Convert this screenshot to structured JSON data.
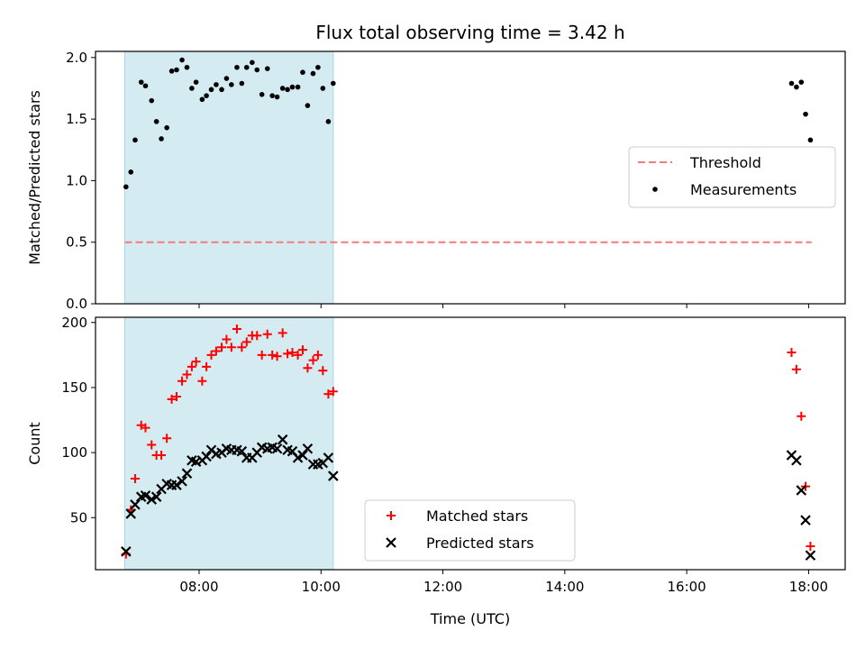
{
  "chart_data": {
    "title": "Flux total observing time = 3.42 h",
    "xlabel": "Time (UTC)",
    "x_unit": "hours (UTC)",
    "xlim": [
      6.3,
      18.6
    ],
    "x_ticks": [
      {
        "value": 8,
        "label": "08:00"
      },
      {
        "value": 10,
        "label": "10:00"
      },
      {
        "value": 12,
        "label": "12:00"
      },
      {
        "value": 14,
        "label": "14:00"
      },
      {
        "value": 16,
        "label": "16:00"
      },
      {
        "value": 18,
        "label": "18:00"
      }
    ],
    "shaded_interval": {
      "x": [
        6.78,
        10.2
      ],
      "color": "#d3ebf1"
    },
    "panels": [
      {
        "type": "scatter",
        "ylabel": "Matched/Predicted stars",
        "ylim": [
          0,
          2.05
        ],
        "y_ticks": [
          {
            "value": 0.0,
            "label": "0.0"
          },
          {
            "value": 0.5,
            "label": "0.5"
          },
          {
            "value": 1.0,
            "label": "1.0"
          },
          {
            "value": 1.5,
            "label": "1.5"
          },
          {
            "value": 2.0,
            "label": "2.0"
          }
        ],
        "legend_position": "center-right",
        "threshold": {
          "name": "Threshold",
          "y": 0.5,
          "x": [
            6.78,
            18.05
          ],
          "color": "#f07c7c"
        },
        "series": [
          {
            "name": "Measurements",
            "marker": "dot",
            "color": "#000000",
            "points": [
              [
                6.8,
                0.95
              ],
              [
                6.88,
                1.07
              ],
              [
                6.95,
                1.33
              ],
              [
                7.05,
                1.8
              ],
              [
                7.12,
                1.77
              ],
              [
                7.22,
                1.65
              ],
              [
                7.3,
                1.48
              ],
              [
                7.38,
                1.34
              ],
              [
                7.47,
                1.43
              ],
              [
                7.55,
                1.89
              ],
              [
                7.63,
                1.9
              ],
              [
                7.72,
                1.98
              ],
              [
                7.8,
                1.92
              ],
              [
                7.88,
                1.75
              ],
              [
                7.95,
                1.8
              ],
              [
                8.05,
                1.66
              ],
              [
                8.12,
                1.69
              ],
              [
                8.2,
                1.74
              ],
              [
                8.28,
                1.78
              ],
              [
                8.37,
                1.74
              ],
              [
                8.45,
                1.83
              ],
              [
                8.53,
                1.78
              ],
              [
                8.62,
                1.92
              ],
              [
                8.7,
                1.79
              ],
              [
                8.78,
                1.92
              ],
              [
                8.87,
                1.96
              ],
              [
                8.95,
                1.9
              ],
              [
                9.03,
                1.7
              ],
              [
                9.12,
                1.91
              ],
              [
                9.2,
                1.69
              ],
              [
                9.28,
                1.68
              ],
              [
                9.37,
                1.75
              ],
              [
                9.45,
                1.74
              ],
              [
                9.53,
                1.76
              ],
              [
                9.62,
                1.76
              ],
              [
                9.7,
                1.88
              ],
              [
                9.78,
                1.61
              ],
              [
                9.87,
                1.87
              ],
              [
                9.95,
                1.92
              ],
              [
                10.03,
                1.75
              ],
              [
                10.12,
                1.48
              ],
              [
                10.2,
                1.79
              ],
              [
                17.72,
                1.79
              ],
              [
                17.8,
                1.76
              ],
              [
                17.88,
                1.8
              ],
              [
                17.95,
                1.54
              ],
              [
                18.03,
                1.33
              ]
            ]
          }
        ]
      },
      {
        "type": "scatter",
        "ylabel": "Count",
        "ylim": [
          10,
          204
        ],
        "y_ticks": [
          {
            "value": 50,
            "label": "50"
          },
          {
            "value": 100,
            "label": "100"
          },
          {
            "value": 150,
            "label": "150"
          },
          {
            "value": 200,
            "label": "200"
          }
        ],
        "legend_position": "lower-center",
        "series": [
          {
            "name": "Matched stars",
            "marker": "plus",
            "color": "#ff0000",
            "points": [
              [
                6.8,
                22
              ],
              [
                6.88,
                56
              ],
              [
                6.95,
                80
              ],
              [
                7.05,
                121
              ],
              [
                7.12,
                119
              ],
              [
                7.22,
                106
              ],
              [
                7.3,
                98
              ],
              [
                7.38,
                98
              ],
              [
                7.47,
                111
              ],
              [
                7.55,
                141
              ],
              [
                7.63,
                143
              ],
              [
                7.72,
                155
              ],
              [
                7.8,
                160
              ],
              [
                7.88,
                166
              ],
              [
                7.95,
                170
              ],
              [
                8.05,
                155
              ],
              [
                8.12,
                166
              ],
              [
                8.2,
                175
              ],
              [
                8.28,
                178
              ],
              [
                8.37,
                181
              ],
              [
                8.45,
                187
              ],
              [
                8.53,
                181
              ],
              [
                8.62,
                195
              ],
              [
                8.7,
                181
              ],
              [
                8.78,
                185
              ],
              [
                8.87,
                190
              ],
              [
                8.95,
                190
              ],
              [
                9.03,
                175
              ],
              [
                9.12,
                191
              ],
              [
                9.2,
                175
              ],
              [
                9.28,
                174
              ],
              [
                9.37,
                192
              ],
              [
                9.45,
                176
              ],
              [
                9.53,
                177
              ],
              [
                9.62,
                175
              ],
              [
                9.7,
                179
              ],
              [
                9.78,
                165
              ],
              [
                9.87,
                171
              ],
              [
                9.95,
                175
              ],
              [
                10.03,
                163
              ],
              [
                10.12,
                145
              ],
              [
                10.2,
                147
              ],
              [
                17.72,
                177
              ],
              [
                17.8,
                164
              ],
              [
                17.88,
                128
              ],
              [
                17.95,
                74
              ],
              [
                18.03,
                28
              ]
            ]
          },
          {
            "name": "Predicted stars",
            "marker": "cross",
            "color": "#000000",
            "points": [
              [
                6.8,
                24
              ],
              [
                6.88,
                53
              ],
              [
                6.95,
                60
              ],
              [
                7.05,
                66
              ],
              [
                7.12,
                67
              ],
              [
                7.22,
                64
              ],
              [
                7.3,
                66
              ],
              [
                7.38,
                72
              ],
              [
                7.47,
                76
              ],
              [
                7.55,
                75
              ],
              [
                7.63,
                75
              ],
              [
                7.72,
                78
              ],
              [
                7.8,
                84
              ],
              [
                7.88,
                94
              ],
              [
                7.95,
                93
              ],
              [
                8.05,
                94
              ],
              [
                8.12,
                97
              ],
              [
                8.2,
                102
              ],
              [
                8.28,
                99
              ],
              [
                8.37,
                100
              ],
              [
                8.45,
                103
              ],
              [
                8.53,
                102
              ],
              [
                8.62,
                102
              ],
              [
                8.7,
                101
              ],
              [
                8.78,
                96
              ],
              [
                8.87,
                96
              ],
              [
                8.95,
                100
              ],
              [
                9.03,
                104
              ],
              [
                9.12,
                103
              ],
              [
                9.2,
                104
              ],
              [
                9.28,
                103
              ],
              [
                9.37,
                110
              ],
              [
                9.45,
                102
              ],
              [
                9.53,
                101
              ],
              [
                9.62,
                96
              ],
              [
                9.7,
                98
              ],
              [
                9.78,
                103
              ],
              [
                9.87,
                91
              ],
              [
                9.95,
                91
              ],
              [
                10.03,
                92
              ],
              [
                10.12,
                96
              ],
              [
                10.2,
                82
              ],
              [
                17.72,
                98
              ],
              [
                17.8,
                94
              ],
              [
                17.88,
                71
              ],
              [
                17.95,
                48
              ],
              [
                18.03,
                21
              ]
            ]
          }
        ]
      }
    ]
  }
}
